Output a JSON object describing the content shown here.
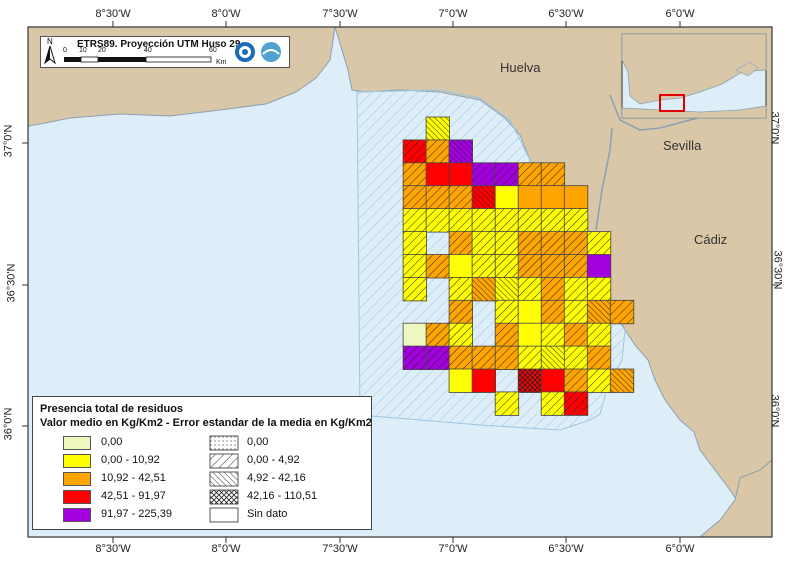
{
  "map": {
    "projection_label": "ETRS89. Proyección UTM  Huso 29",
    "north_label": "N",
    "scale_ticks": [
      "0",
      "10",
      "20",
      "40",
      "60"
    ],
    "scale_unit": "Km",
    "places": {
      "huelva": "Huelva",
      "sevilla": "Sevilla",
      "cadiz": "Cádiz"
    },
    "lon_ticks": [
      "8°30'W",
      "8°0'W",
      "7°30'W",
      "7°0'W",
      "6°30'W",
      "6°0'W"
    ],
    "lat_ticks": [
      "37°0'N",
      "36°30'N",
      "36°0'N"
    ],
    "colors": {
      "sea": "#deeef8",
      "land": "#d9c7a8",
      "coast": "#8aa0b4",
      "area_hatch": "#9cc5e2",
      "class_0": "#ecf8c0",
      "class_1": "#ffff00",
      "class_2": "#ffa500",
      "class_3": "#ff0000",
      "class_4": "#a300e0",
      "inset_highlight": "#e00000"
    }
  },
  "legend": {
    "title1": "Presencia total de residuos",
    "title2": "Valor medio en Kg/Km2 - Error estandar de la media en Kg/Km2",
    "mean_classes": [
      "0,00",
      "0,00 - 10,92",
      "10,92 - 42,51",
      "42,51 - 91,97",
      "91,97 - 225,39"
    ],
    "se_classes": [
      "0,00",
      "0,00 - 4,92",
      "4,92 - 42,16",
      "42,16 - 110,51",
      "Sin dato"
    ]
  },
  "grid": {
    "rows": [
      "......1...............",
      ".....3.214..............",
      ".....2.3.3.44.2.2......",
      ".....2.2.2.3.1.2.2.2...",
      ".....1.1.1.1.1.1.1.1...",
      ".....1...2.1.1.2.2.2.1.",
      ".....1.2.1.1.1.2.2.2.4.",
      ".....1...1.2.1.1.2.1.1...",
      "........2...1.1.2.1.2.2.",
      ".....0.2.1...2.1.1.2.1.",
      ".....4.4.2.2.2.1.1.1.2..",
      "........1.3...3.3.2.1.2.2.",
      ".............1...1.3...",
      "...............1.2.2.1.",
      "................2.3.2.",
      "..................2.2."
    ],
    "se_rows": [
      "......c...............",
      ".....d.ddcd..............",
      ".....d.n.n.dd.d.d......",
      ".....d.d.d.c.n.n.n.n...",
      ".....d.d.d.d.d.d.d.d...",
      ".....d...d.d.d.d.d.d.d.",
      ".....d.d.n.d.d.d.d.d.n.",
      ".....d...d.c.c.d.d.d.d...",
      "........d...d.n.d.d.c.d.",
      ".....n.d.d...d.n.d.d.d.",
      ".....d.d.d.d.d.d.c.d.d..",
      "........n.n...x.n.d.d.c.d.",
      ".............d...d.d...",
      "...............d.d.n.n.",
      "................d.d.d.",
      "..................d.d."
    ]
  }
}
